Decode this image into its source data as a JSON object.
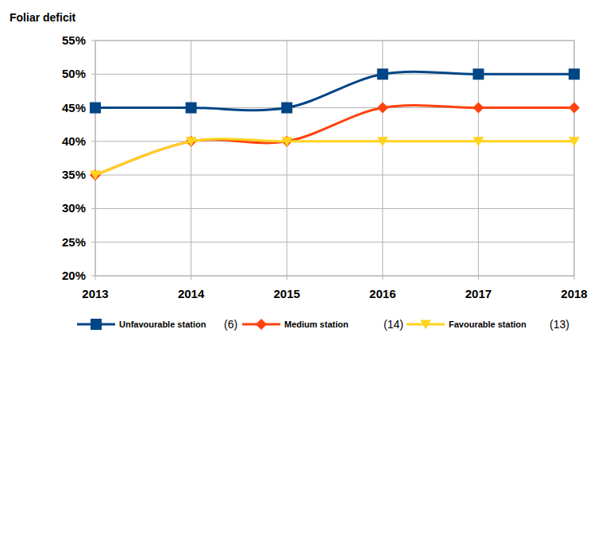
{
  "chart_data": {
    "type": "line",
    "ylabel": "Foliar deficit",
    "x": [
      2013,
      2014,
      2015,
      2016,
      2017,
      2018
    ],
    "xlim": [
      2013,
      2018
    ],
    "xticks": [
      2013,
      2014,
      2015,
      2016,
      2017,
      2018
    ],
    "ylim": [
      20,
      55
    ],
    "yticks": [
      {
        "value": 20,
        "label": "20%"
      },
      {
        "value": 25,
        "label": "25%"
      },
      {
        "value": 30,
        "label": "30%"
      },
      {
        "value": 35,
        "label": "35%"
      },
      {
        "value": 40,
        "label": "40%"
      },
      {
        "value": 45,
        "label": "45%"
      },
      {
        "value": 50,
        "label": "50%"
      },
      {
        "value": 55,
        "label": "55%"
      }
    ],
    "grid": true,
    "legend": "bottom",
    "series": [
      {
        "name": "Unfavourable station",
        "annotation": "(6)",
        "color": "#004586",
        "marker": "square",
        "line_style": "solid",
        "values": [
          45,
          45,
          45,
          50,
          50,
          50
        ]
      },
      {
        "name": "Medium station",
        "annotation": "(14)",
        "color": "#ff420e",
        "marker": "diamond",
        "line_style": "solid",
        "values": [
          35,
          40,
          40,
          45,
          45,
          45
        ]
      },
      {
        "name": "Favourable station",
        "annotation": "(13)",
        "color": "#ffd320",
        "marker": "triangle-down",
        "line_style": "solid",
        "values": [
          35,
          40,
          40,
          40,
          40,
          40
        ]
      }
    ]
  }
}
